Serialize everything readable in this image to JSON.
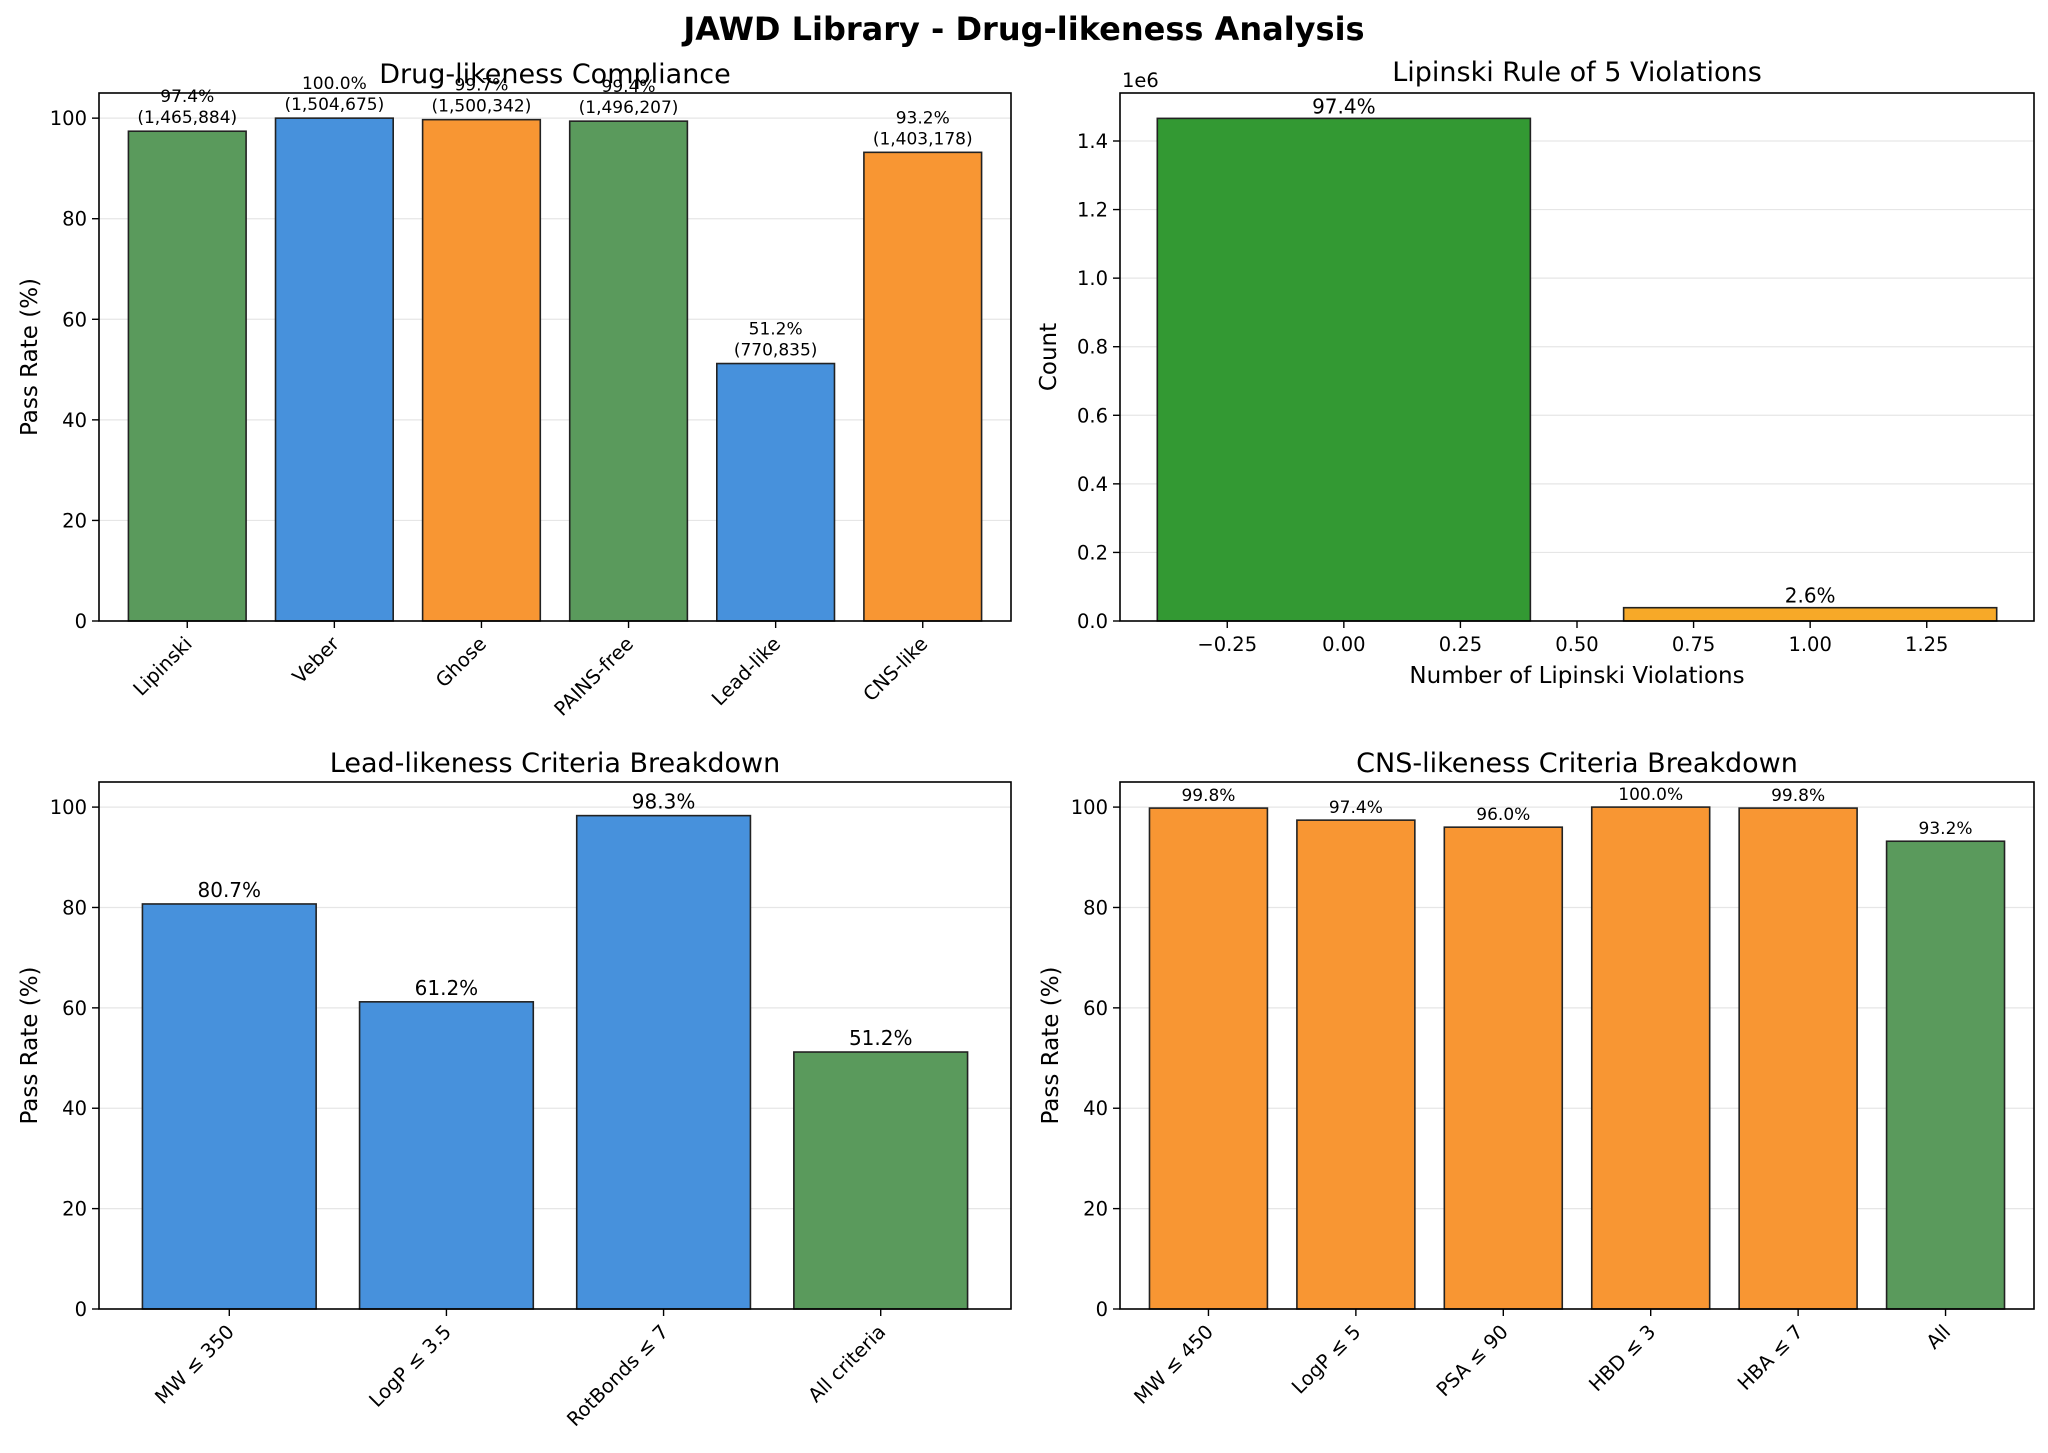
{
  "suptitle": "JAWD Library - Drug-likeness Analysis",
  "colors": {
    "green": "#5a9a5c",
    "blue": "#4791dc",
    "orange": "#f89633",
    "bright_green": "#339933",
    "bright_orange": "#f7a928",
    "grid": "#e6e6e6",
    "edge": "#222222"
  },
  "chart_data": [
    {
      "id": "compliance",
      "type": "bar",
      "title": "Drug-likeness Compliance",
      "xlabel": "",
      "ylabel": "Pass Rate (%)",
      "ylim": [
        0,
        105
      ],
      "yticks": [
        "0",
        "20",
        "40",
        "60",
        "80",
        "100"
      ],
      "categories": [
        "Lipinski",
        "Veber",
        "Ghose",
        "PAINS-free",
        "Lead-like",
        "CNS-like"
      ],
      "values": [
        97.4,
        100.0,
        99.7,
        99.4,
        51.2,
        93.2
      ],
      "bar_colors": [
        "green",
        "blue",
        "orange",
        "green",
        "blue",
        "orange"
      ],
      "labels": [
        [
          "97.4%",
          "(1,465,884)"
        ],
        [
          "100.0%",
          "(1,504,675)"
        ],
        [
          "99.7%",
          "(1,500,342)"
        ],
        [
          "99.4%",
          "(1,496,207)"
        ],
        [
          "51.2%",
          "(770,835)"
        ],
        [
          "93.2%",
          "(1,403,178)"
        ]
      ],
      "grid": true
    },
    {
      "id": "violations",
      "type": "bar",
      "title": "Lipinski Rule of 5 Violations",
      "xlabel": "Number of Lipinski Violations",
      "ylabel": "Count",
      "offset_text": "1e6",
      "xlim": [
        -0.48,
        1.48
      ],
      "ylim": [
        0,
        1.54
      ],
      "xticks": [
        -0.25,
        0.0,
        0.25,
        0.5,
        0.75,
        1.0,
        1.25
      ],
      "xtick_labels": [
        "−0.25",
        "0.00",
        "0.25",
        "0.50",
        "0.75",
        "1.00",
        "1.25"
      ],
      "yticks": [
        "0.0",
        "0.2",
        "0.4",
        "0.6",
        "0.8",
        "1.0",
        "1.2",
        "1.4"
      ],
      "x": [
        0,
        1
      ],
      "values": [
        1.466,
        0.0388
      ],
      "bar_width": 0.8,
      "bar_colors": [
        "bright_green",
        "bright_orange"
      ],
      "labels": [
        "97.4%",
        "2.6%"
      ],
      "grid": true
    },
    {
      "id": "lead",
      "type": "bar",
      "title": "Lead-likeness Criteria Breakdown",
      "xlabel": "",
      "ylabel": "Pass Rate (%)",
      "ylim": [
        0,
        105
      ],
      "yticks": [
        "0",
        "20",
        "40",
        "60",
        "80",
        "100"
      ],
      "categories": [
        "MW ≤ 350",
        "LogP ≤ 3.5",
        "RotBonds ≤ 7",
        "All criteria"
      ],
      "values": [
        80.7,
        61.2,
        98.3,
        51.2
      ],
      "bar_colors": [
        "blue",
        "blue",
        "blue",
        "green"
      ],
      "labels": [
        "80.7%",
        "61.2%",
        "98.3%",
        "51.2%"
      ],
      "grid": true
    },
    {
      "id": "cns",
      "type": "bar",
      "title": "CNS-likeness Criteria Breakdown",
      "xlabel": "",
      "ylabel": "Pass Rate (%)",
      "ylim": [
        0,
        105
      ],
      "yticks": [
        "0",
        "20",
        "40",
        "60",
        "80",
        "100"
      ],
      "categories": [
        "MW ≤ 450",
        "LogP ≤ 5",
        "PSA ≤ 90",
        "HBD ≤ 3",
        "HBA ≤ 7",
        "All"
      ],
      "values": [
        99.8,
        97.4,
        96.0,
        100.0,
        99.8,
        93.2
      ],
      "bar_colors": [
        "orange",
        "orange",
        "orange",
        "orange",
        "orange",
        "green"
      ],
      "labels": [
        "99.8%",
        "97.4%",
        "96.0%",
        "100.0%",
        "99.8%",
        "93.2%"
      ],
      "grid": true
    }
  ]
}
